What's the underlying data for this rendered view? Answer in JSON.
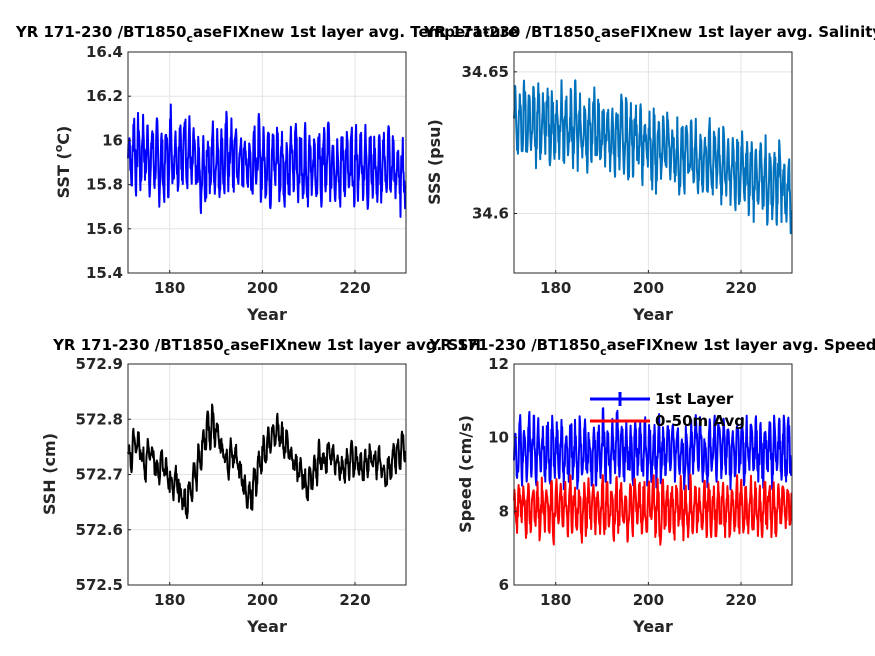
{
  "chart_data": [
    {
      "type": "line",
      "title": "YR 171-230 /BT1850_caseFIXnew 1st layer avg. Temperature",
      "title_display": {
        "pre": "YR 171-230 /BT1850",
        "sub": "c",
        "post": "aseFIXnew 1st layer avg. Temperature"
      },
      "xlabel": "Year",
      "ylabel": "SST (°C)",
      "ylabel_display": {
        "pre": "SST (",
        "sup": "o",
        "post": "C)"
      },
      "xlim": [
        171,
        231
      ],
      "ylim": [
        15.4,
        16.4
      ],
      "xticks": [
        180,
        200,
        220
      ],
      "yticks": [
        "15.4",
        "15.6",
        "15.8",
        "16",
        "16.2",
        "16.4"
      ],
      "grid": true,
      "series": [
        {
          "color": "#0000ff",
          "x_start": 171,
          "x_step": 0.0833,
          "mean": [
            15.92,
            15.95,
            15.94,
            15.96,
            15.92,
            15.93,
            15.9,
            15.88,
            15.91,
            15.96,
            15.93,
            15.95,
            15.97,
            15.93,
            15.9,
            15.82,
            15.86,
            15.89,
            15.92,
            15.9,
            15.9,
            15.94,
            15.93,
            15.92,
            15.9,
            15.91,
            15.88,
            15.93,
            15.92,
            15.9,
            15.89,
            15.92,
            15.9,
            15.88,
            15.87,
            15.9,
            15.92,
            15.88,
            15.89,
            15.91,
            15.85,
            15.88,
            15.9,
            15.91,
            15.89,
            15.87,
            15.9,
            15.88,
            15.86,
            15.89,
            15.9,
            15.88,
            15.89,
            15.87,
            15.86,
            15.89,
            15.9,
            15.87,
            15.84,
            15.86
          ],
          "half_range": [
            0.16,
            0.2,
            0.19,
            0.17,
            0.18,
            0.16,
            0.2,
            0.17,
            0.17,
            0.21,
            0.16,
            0.2,
            0.19,
            0.18,
            0.17,
            0.2,
            0.16,
            0.17,
            0.18,
            0.17,
            0.17,
            0.19,
            0.18,
            0.2,
            0.16,
            0.17,
            0.18,
            0.19,
            0.2,
            0.16,
            0.2,
            0.17,
            0.19,
            0.18,
            0.17,
            0.17,
            0.2,
            0.18,
            0.19,
            0.16,
            0.17,
            0.2,
            0.18,
            0.19,
            0.17,
            0.18,
            0.16,
            0.17,
            0.2,
            0.18,
            0.17,
            0.19,
            0.18,
            0.17,
            0.18,
            0.16,
            0.19,
            0.17,
            0.19,
            0.18
          ]
        }
      ]
    },
    {
      "type": "line",
      "title": "YR 171-230 /BT1850_caseFIXnew 1st layer avg. Salinity",
      "title_display": {
        "pre": "YR 171-230 /BT1850",
        "sub": "c",
        "post": "aseFIXnew 1st layer avg. Salinity"
      },
      "xlabel": "Year",
      "ylabel": "SSS (psu)",
      "xlim": [
        171,
        231
      ],
      "ylim": [
        34.579,
        34.657
      ],
      "xticks": [
        180,
        200,
        220
      ],
      "yticks": [
        "34.6",
        "34.65"
      ],
      "ytick_values": [
        34.6,
        34.65
      ],
      "grid": true,
      "series": [
        {
          "color": "#0072bd",
          "x_start": 171,
          "x_step": 0.0833,
          "mean": [
            34.631,
            34.632,
            34.632,
            34.633,
            34.631,
            34.632,
            34.633,
            34.633,
            34.632,
            34.631,
            34.632,
            34.631,
            34.63,
            34.631,
            34.63,
            34.629,
            34.63,
            34.631,
            34.629,
            34.629,
            34.628,
            34.626,
            34.627,
            34.628,
            34.626,
            34.626,
            34.628,
            34.625,
            34.624,
            34.622,
            34.623,
            34.624,
            34.623,
            34.625,
            34.622,
            34.62,
            34.621,
            34.621,
            34.619,
            34.621,
            34.618,
            34.617,
            34.618,
            34.62,
            34.617,
            34.617,
            34.615,
            34.614,
            34.614,
            34.616,
            34.613,
            34.612,
            34.613,
            34.613,
            34.612,
            34.611,
            34.61,
            34.612,
            34.609,
            34.608
          ],
          "half_range": [
            0.014,
            0.012,
            0.016,
            0.013,
            0.015,
            0.014,
            0.012,
            0.016,
            0.014,
            0.013,
            0.015,
            0.012,
            0.014,
            0.016,
            0.013,
            0.015,
            0.012,
            0.014,
            0.016,
            0.013,
            0.014,
            0.015,
            0.012,
            0.014,
            0.016,
            0.013,
            0.014,
            0.015,
            0.012,
            0.014,
            0.016,
            0.013,
            0.014,
            0.015,
            0.012,
            0.014,
            0.016,
            0.013,
            0.014,
            0.015,
            0.012,
            0.014,
            0.016,
            0.013,
            0.014,
            0.015,
            0.012,
            0.014,
            0.016,
            0.013,
            0.014,
            0.015,
            0.012,
            0.014,
            0.016,
            0.013,
            0.014,
            0.015,
            0.012,
            0.015
          ]
        }
      ]
    },
    {
      "type": "line",
      "title": "YR 171-230 /BT1850_caseFIXnew 1st layer avg. SSH",
      "title_display": {
        "pre": "YR 171-230 /BT1850",
        "sub": "c",
        "post": "aseFIXnew 1st layer avg. SSH"
      },
      "xlabel": "Year",
      "ylabel": "SSH (cm)",
      "xlim": [
        171,
        231
      ],
      "ylim": [
        572.5,
        572.9
      ],
      "xticks": [
        180,
        200,
        220
      ],
      "yticks": [
        "572.5",
        "572.6",
        "572.7",
        "572.8",
        "572.9"
      ],
      "grid": true,
      "series": [
        {
          "color": "#000000",
          "x_start": 171,
          "x_step": 0.0833,
          "mean": [
            572.73,
            572.76,
            572.75,
            572.72,
            572.74,
            572.73,
            572.71,
            572.72,
            572.7,
            572.68,
            572.69,
            572.66,
            572.64,
            572.67,
            572.7,
            572.73,
            572.76,
            572.78,
            572.79,
            572.77,
            572.74,
            572.72,
            572.74,
            572.73,
            572.7,
            572.67,
            572.66,
            572.69,
            572.72,
            572.74,
            572.76,
            572.77,
            572.78,
            572.76,
            572.75,
            572.73,
            572.71,
            572.7,
            572.68,
            572.69,
            572.71,
            572.73,
            572.72,
            572.74,
            572.73,
            572.72,
            572.71,
            572.72,
            572.73,
            572.72,
            572.71,
            572.72,
            572.73,
            572.72,
            572.72,
            572.7,
            572.71,
            572.73,
            572.74,
            572.75
          ],
          "half_range": [
            0.03,
            0.025,
            0.03,
            0.035,
            0.025,
            0.03,
            0.03,
            0.025,
            0.03,
            0.035,
            0.03,
            0.025,
            0.04,
            0.03,
            0.03,
            0.025,
            0.03,
            0.035,
            0.04,
            0.03,
            0.025,
            0.03,
            0.03,
            0.025,
            0.03,
            0.035,
            0.03,
            0.03,
            0.025,
            0.03,
            0.03,
            0.025,
            0.03,
            0.035,
            0.03,
            0.025,
            0.03,
            0.03,
            0.03,
            0.025,
            0.03,
            0.035,
            0.03,
            0.025,
            0.03,
            0.03,
            0.025,
            0.03,
            0.035,
            0.03,
            0.03,
            0.025,
            0.03,
            0.03,
            0.035,
            0.03,
            0.025,
            0.03,
            0.03,
            0.03
          ]
        }
      ]
    },
    {
      "type": "line",
      "title": "YR 171-230 /BT1850_caseFIXnew 1st layer avg. Speed",
      "title_display": {
        "pre": "YR 171-230 /BT1850",
        "sub": "c",
        "post": "aseFIXnew 1st layer avg. Speed"
      },
      "xlabel": "Year",
      "ylabel": "Speed (cm/s)",
      "xlim": [
        171,
        231
      ],
      "ylim": [
        6,
        12
      ],
      "xticks": [
        180,
        200,
        220
      ],
      "yticks": [
        "6",
        "8",
        "10",
        "12"
      ],
      "grid": true,
      "legend": {
        "position": "top-right",
        "entries": [
          "1st Layer",
          "0-50m Avg"
        ]
      },
      "series": [
        {
          "name": "1st Layer",
          "color": "#0000ff",
          "x_start": 171,
          "x_step": 0.0833,
          "mean": [
            9.6,
            9.7,
            9.5,
            9.8,
            9.6,
            9.7,
            9.5,
            9.6,
            9.8,
            9.7,
            9.6,
            9.5,
            9.7,
            9.6,
            9.8,
            9.7,
            9.5,
            9.6,
            9.7,
            9.8,
            9.6,
            9.7,
            9.9,
            9.7,
            9.6,
            9.5,
            9.7,
            9.6,
            9.7,
            9.6,
            9.5,
            9.7,
            9.6,
            9.8,
            9.6,
            9.7,
            9.5,
            9.6,
            9.7,
            9.8,
            9.6,
            9.5,
            9.7,
            9.6,
            9.8,
            9.7,
            9.6,
            9.5,
            9.7,
            9.6,
            9.7,
            9.8,
            9.6,
            9.5,
            9.7,
            9.6,
            9.8,
            9.7,
            9.6,
            9.7
          ],
          "half_range": [
            0.9,
            1.0,
            0.8,
            0.9,
            1.0,
            0.9,
            0.8,
            1.0,
            0.9,
            0.8,
            1.0,
            0.9,
            0.9,
            1.0,
            0.8,
            0.9,
            1.0,
            0.9,
            0.8,
            1.0,
            0.9,
            0.9,
            1.2,
            0.9,
            0.8,
            1.0,
            0.9,
            0.9,
            1.0,
            0.8,
            0.9,
            1.0,
            0.9,
            0.8,
            1.0,
            0.9,
            0.9,
            1.0,
            0.8,
            0.9,
            1.0,
            0.9,
            0.8,
            1.0,
            0.9,
            0.9,
            1.0,
            0.8,
            0.9,
            1.0,
            0.9,
            0.8,
            1.0,
            0.9,
            0.9,
            1.0,
            0.8,
            0.9,
            1.0,
            0.9
          ]
        },
        {
          "name": "0-50m Avg",
          "color": "#ff0000",
          "x_start": 171,
          "x_step": 0.0833,
          "mean": [
            8.1,
            8.2,
            8.0,
            8.2,
            8.1,
            8.0,
            8.2,
            8.1,
            8.0,
            8.2,
            8.1,
            8.0,
            8.2,
            8.1,
            8.0,
            8.1,
            8.2,
            8.1,
            8.0,
            8.2,
            8.1,
            8.0,
            8.2,
            8.1,
            8.0,
            8.1,
            8.2,
            8.1,
            8.0,
            8.2,
            8.1,
            7.9,
            8.2,
            8.1,
            8.0,
            8.2,
            8.1,
            8.0,
            8.2,
            8.1,
            8.0,
            8.2,
            8.1,
            8.0,
            8.2,
            8.1,
            8.0,
            8.1,
            8.2,
            8.1,
            8.0,
            8.2,
            8.1,
            8.0,
            8.2,
            8.1,
            8.0,
            8.2,
            8.1,
            8.2
          ],
          "half_range": [
            0.8,
            0.7,
            0.8,
            0.9,
            0.7,
            0.8,
            0.8,
            0.7,
            0.9,
            0.8,
            0.7,
            0.8,
            0.8,
            0.7,
            0.9,
            0.8,
            0.7,
            0.8,
            0.8,
            0.9,
            0.7,
            0.8,
            0.8,
            0.7,
            0.9,
            0.8,
            0.7,
            0.8,
            0.8,
            0.7,
            0.9,
            1.0,
            0.8,
            0.7,
            0.8,
            0.8,
            0.9,
            0.7,
            0.8,
            0.8,
            0.7,
            0.9,
            0.8,
            0.7,
            0.8,
            0.8,
            0.9,
            0.7,
            0.8,
            0.8,
            0.7,
            0.9,
            0.8,
            0.7,
            0.8,
            0.8,
            0.9,
            0.7,
            0.8,
            0.8
          ]
        }
      ]
    }
  ]
}
